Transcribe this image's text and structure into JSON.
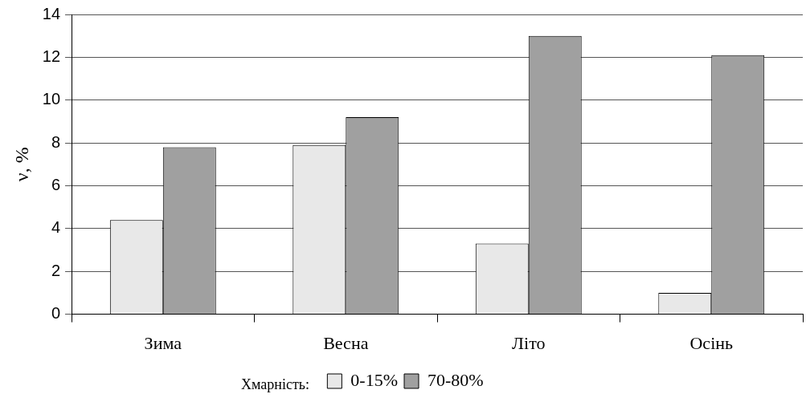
{
  "chart_data": {
    "type": "bar",
    "ylabel": "ν, %",
    "legend_title": "Хмарність:",
    "categories": [
      "Зима",
      "Весна",
      "Літо",
      "Осінь"
    ],
    "series": [
      {
        "name": "0-15%",
        "color": "#e8e8e8",
        "values": [
          4.4,
          7.9,
          3.3,
          1.0
        ]
      },
      {
        "name": "70-80%",
        "color": "#a0a0a0",
        "values": [
          7.8,
          9.2,
          13.0,
          12.1
        ]
      }
    ],
    "ylim": [
      0,
      14
    ],
    "yticks": [
      0,
      2,
      4,
      6,
      8,
      10,
      12,
      14
    ],
    "grid": "y",
    "legend": "bottom"
  }
}
